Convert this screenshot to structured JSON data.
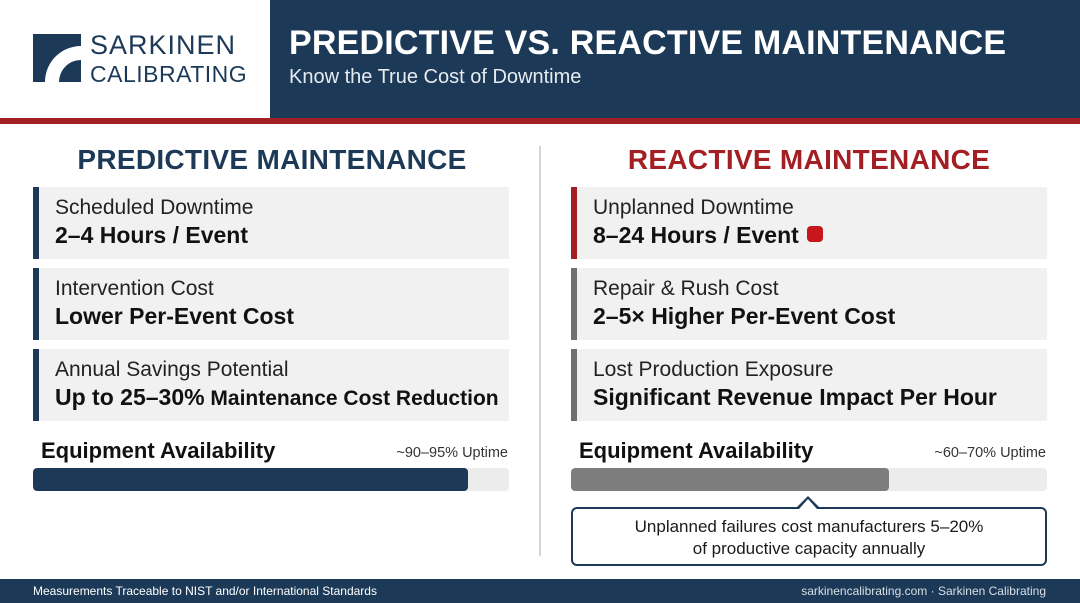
{
  "brand": {
    "line1": "SARKINEN",
    "line2": "CALIBRATING"
  },
  "header": {
    "title": "PREDICTIVE VS. REACTIVE MAINTENANCE",
    "subtitle": "Know the True Cost of Downtime"
  },
  "predictive": {
    "heading": "PREDICTIVE MAINTENANCE",
    "cards": [
      {
        "label": "Scheduled Downtime",
        "value": "2–4 Hours / Event"
      },
      {
        "label": "Intervention Cost",
        "value": "Lower Per-Event Cost"
      },
      {
        "label": "Annual Savings Potential",
        "value": "Up to 25–30%",
        "value_suffix": " Maintenance Cost Reduction"
      }
    ],
    "availability": {
      "label": "Equipment Availability",
      "uptime": "~90–95% Uptime",
      "level": 0.913
    }
  },
  "reactive": {
    "heading": "REACTIVE MAINTENANCE",
    "cards": [
      {
        "label": "Unplanned Downtime",
        "value": "8–24 Hours / Event"
      },
      {
        "label": "Repair & Rush Cost",
        "value": "2–5× Higher Per-Event Cost"
      },
      {
        "label": "Lost Production Exposure",
        "value": "Significant Revenue Impact Per Hour"
      }
    ],
    "availability": {
      "label": "Equipment Availability",
      "uptime": "~60–70% Uptime",
      "level": 0.668
    },
    "callout": {
      "line1": "Unplanned failures cost manufacturers 5–20%",
      "line2": "of productive capacity annually"
    }
  },
  "footer": {
    "left": "Measurements Traceable to NIST and/or International Standards",
    "right": "sarkinencalibrating.com · Sarkinen Calibrating"
  },
  "colors": {
    "navy": "#1c3a57",
    "red": "#a31f24",
    "alert_red": "#c8161d",
    "gray": "#7d7d7d"
  },
  "icons": {
    "logo": "logo-mark-icon",
    "alert": "alert-square-icon"
  }
}
